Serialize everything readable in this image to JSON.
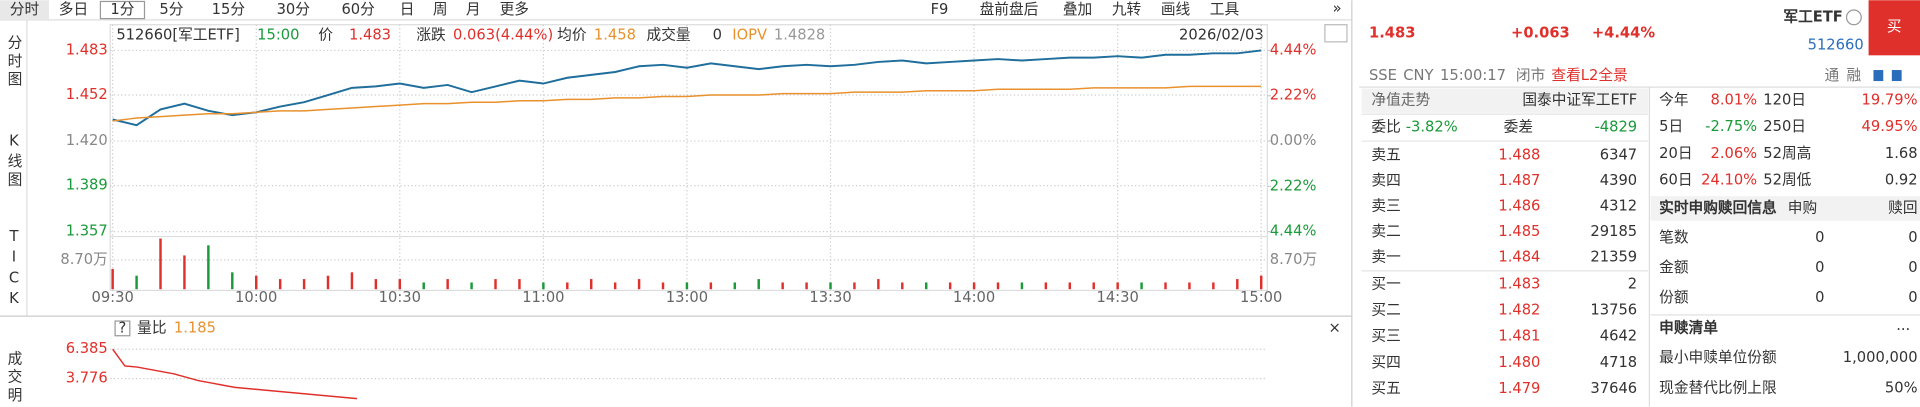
{
  "tabs": [
    "分时",
    "多日",
    "1分",
    "5分",
    "15分",
    "30分",
    "60分",
    "日",
    "周",
    "月",
    "更多"
  ],
  "tools": [
    "F9",
    "盘前盘后",
    "叠加",
    "九转",
    "画线",
    "工具"
  ],
  "more": "»",
  "sidebar": [
    "分时图",
    "K线图",
    "TICK",
    "成交明"
  ],
  "info": {
    "code": "512660[军工ETF]",
    "time": "15:00",
    "price": "1.483",
    "change_label": "涨跌",
    "change": "0.063(4.44%)",
    "avg": "1.458",
    "vol": "0",
    "iopv_label": "IOPV",
    "iopv": "1.4828",
    "date": "2026/02/03"
  },
  "ratio_header": {
    "help": "?",
    "current": "1.185",
    "close": "×"
  },
  "chart_data": [
    {
      "type": "line",
      "xticks": [
        "09:30",
        "10:00",
        "10:30",
        "11:00",
        "13:00",
        "13:30",
        "14:00",
        "14:30",
        "15:00"
      ],
      "ylim": [
        1.357,
        1.483
      ],
      "yticks": [
        1.483,
        1.452,
        {
          "value": 1.42,
          "label": "1.420"
        },
        1.389,
        1.357
      ],
      "y2lim": [
        -4.44,
        4.44
      ],
      "y2ticks": [
        {
          "value": 4.44,
          "label": "4.44%"
        },
        {
          "value": 2.22,
          "label": "2.22%"
        },
        {
          "value": 0,
          "label": "0.00%"
        },
        {
          "value": -2.22,
          "label": "2.22%"
        },
        {
          "value": -4.44,
          "label": "4.44%"
        }
      ],
      "grid": true,
      "up_color": "#e0302b",
      "down_color": "#1a9a3a",
      "series": [
        {
          "name": "价",
          "color": "#1f6e9c",
          "values": [
            1.435,
            1.431,
            1.442,
            1.446,
            1.441,
            1.438,
            1.44,
            1.444,
            1.447,
            1.452,
            1.457,
            1.458,
            1.46,
            1.457,
            1.459,
            1.454,
            1.458,
            1.462,
            1.46,
            1.464,
            1.466,
            1.468,
            1.472,
            1.473,
            1.471,
            1.474,
            1.472,
            1.47,
            1.472,
            1.473,
            1.472,
            1.473,
            1.475,
            1.476,
            1.474,
            1.475,
            1.476,
            1.477,
            1.476,
            1.477,
            1.478,
            1.478,
            1.479,
            1.478,
            1.48,
            1.48,
            1.481,
            1.481,
            1.483
          ]
        },
        {
          "name": "均价",
          "color": "#e8912d",
          "values": [
            1.434,
            1.436,
            1.437,
            1.438,
            1.439,
            1.439,
            1.44,
            1.441,
            1.441,
            1.442,
            1.443,
            1.444,
            1.445,
            1.446,
            1.446,
            1.447,
            1.447,
            1.448,
            1.448,
            1.449,
            1.449,
            1.45,
            1.45,
            1.451,
            1.451,
            1.452,
            1.452,
            1.452,
            1.453,
            1.453,
            1.453,
            1.454,
            1.454,
            1.454,
            1.455,
            1.455,
            1.455,
            1.456,
            1.456,
            1.456,
            1.456,
            1.457,
            1.457,
            1.457,
            1.457,
            1.458,
            1.458,
            1.458,
            1.458
          ]
        }
      ]
    },
    {
      "type": "bar",
      "ylim": [
        0,
        17.4
      ],
      "yticks": [
        {
          "value": 8.7,
          "label": "8.70万"
        }
      ],
      "series": [
        {
          "name": "成交量",
          "values": [
            6,
            4,
            15,
            10,
            13,
            5,
            4,
            3,
            3,
            4,
            5,
            3,
            3,
            2,
            3,
            2,
            3,
            3,
            2,
            2,
            3,
            2,
            3,
            2,
            2,
            2,
            2,
            3,
            2,
            2,
            2,
            2,
            3,
            2,
            2,
            2,
            2,
            2,
            2,
            2,
            2,
            2,
            2,
            2,
            2,
            2,
            2,
            3,
            4
          ]
        }
      ]
    },
    {
      "type": "line",
      "ylim": [
        1.276,
        7.472
      ],
      "yticks": [
        6.385,
        3.776
      ],
      "grid": true,
      "series": [
        {
          "name": "量比",
          "color": "#e0302b",
          "values": [
            6.385,
            4.9,
            4.8,
            4.6,
            4.4,
            4.2,
            3.9,
            3.6,
            3.4,
            3.2,
            3.0,
            2.9,
            2.8,
            2.7,
            2.6,
            2.5,
            2.4,
            2.3,
            2.2,
            2.1,
            2.0,
            null,
            null,
            null,
            null,
            null,
            null,
            null,
            null,
            null,
            null,
            null,
            null,
            null,
            null,
            null,
            null,
            null,
            null,
            null,
            null,
            null,
            null,
            null,
            null,
            null,
            null,
            null,
            null,
            null,
            null,
            null,
            null,
            null,
            null,
            null,
            null,
            null,
            null,
            null,
            null,
            null,
            null,
            null,
            null,
            null,
            null,
            null,
            null,
            null,
            null,
            null,
            null,
            null,
            null,
            null,
            null,
            null,
            null,
            null,
            null,
            null,
            null,
            null,
            null,
            null,
            null,
            null,
            null,
            null,
            null,
            null,
            null,
            null,
            null
          ]
        }
      ]
    }
  ],
  "quote": {
    "price": "1.483",
    "change": "+0.063",
    "pct": "+4.44%",
    "name": "军工ETF",
    "code": "512660",
    "buy": "买",
    "exchange": "SSE",
    "currency": "CNY",
    "time": "15:00:17",
    "status": "闭市",
    "l2": "查看L2全景",
    "icons": [
      "通",
      "融"
    ]
  },
  "orderbook": {
    "nav_label": "净值走势",
    "fund": "国泰中证军工ETF",
    "ratio_label": "委比",
    "ratio": "-3.82%",
    "diff_label": "委差",
    "diff": "-4829",
    "sells": [
      [
        "卖五",
        "1.488",
        "6347"
      ],
      [
        "卖四",
        "1.487",
        "4390"
      ],
      [
        "卖三",
        "1.486",
        "4312"
      ],
      [
        "卖二",
        "1.485",
        "29185"
      ],
      [
        "卖一",
        "1.484",
        "21359"
      ]
    ],
    "buys": [
      [
        "买一",
        "1.483",
        "2"
      ],
      [
        "买二",
        "1.482",
        "13756"
      ],
      [
        "买三",
        "1.481",
        "4642"
      ],
      [
        "买四",
        "1.480",
        "4718"
      ],
      [
        "买五",
        "1.479",
        "37646"
      ]
    ]
  },
  "stats": [
    [
      "今年",
      "8.01%",
      "120日",
      "19.79%"
    ],
    [
      "5日",
      "-2.75%",
      "250日",
      "49.95%"
    ],
    [
      "20日",
      "2.06%",
      "52周高",
      "1.68"
    ],
    [
      "60日",
      "24.10%",
      "52周低",
      "0.92"
    ]
  ],
  "redemption": {
    "title": "实时申购赎回信息",
    "cols": [
      "申购",
      "赎回"
    ],
    "rows": [
      [
        "笔数",
        "0",
        "0"
      ],
      [
        "金额",
        "0",
        "0"
      ],
      [
        "份额",
        "0",
        "0"
      ]
    ]
  },
  "list": {
    "title": "申赎清单",
    "more": "...",
    "rows": [
      [
        "最小申赎单位份额",
        "1,000,000"
      ],
      [
        "现金替代比例上限",
        "50%"
      ]
    ]
  }
}
